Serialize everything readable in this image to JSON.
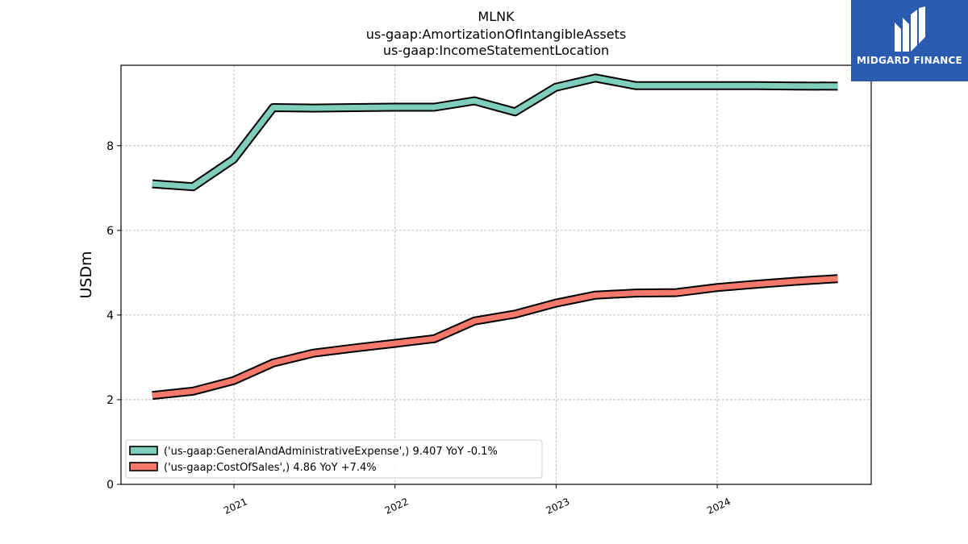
{
  "chart_data": {
    "type": "line",
    "title_lines": [
      "MLNK",
      "us-gaap:AmortizationOfIntangibleAssets",
      "us-gaap:IncomeStatementLocation"
    ],
    "ylabel": "USDm",
    "xlabel": "",
    "ylim": [
      0,
      9.9
    ],
    "yticks": [
      0,
      2,
      4,
      6,
      8
    ],
    "xlim": [
      "2020-04-20",
      "2024-12-15"
    ],
    "xticks": [
      {
        "date": "2021-01-01",
        "label": "2021"
      },
      {
        "date": "2022-01-01",
        "label": "2022"
      },
      {
        "date": "2023-01-01",
        "label": "2023"
      },
      {
        "date": "2024-01-01",
        "label": "2024"
      }
    ],
    "grid": true,
    "legend_position": "lower-left",
    "x": [
      "2020-06-30",
      "2020-09-30",
      "2020-12-31",
      "2021-03-31",
      "2021-06-30",
      "2021-09-30",
      "2021-12-31",
      "2022-03-31",
      "2022-06-30",
      "2022-09-30",
      "2022-12-31",
      "2023-03-31",
      "2023-06-30",
      "2023-09-30",
      "2023-12-31",
      "2024-03-31",
      "2024-06-30",
      "2024-09-30"
    ],
    "series": [
      {
        "name": "('us-gaap:GeneralAndAdministrativeExpense',) 9.407 YoY -0.1%",
        "color": "#7fcdbb",
        "values": [
          7.1,
          7.03,
          7.68,
          8.9,
          8.89,
          8.9,
          8.91,
          8.91,
          9.06,
          8.8,
          9.38,
          9.6,
          9.42,
          9.42,
          9.42,
          9.42,
          9.41,
          9.407
        ]
      },
      {
        "name": "('us-gaap:CostOfSales',) 4.86 YoY +7.4%",
        "color": "#f4796b",
        "values": [
          2.1,
          2.2,
          2.45,
          2.87,
          3.1,
          3.22,
          3.33,
          3.44,
          3.86,
          4.02,
          4.28,
          4.47,
          4.52,
          4.53,
          4.65,
          4.73,
          4.8,
          4.86
        ]
      }
    ]
  },
  "logo": {
    "text": "MIDGARD FINANCE",
    "color": "#2b5bb0"
  }
}
